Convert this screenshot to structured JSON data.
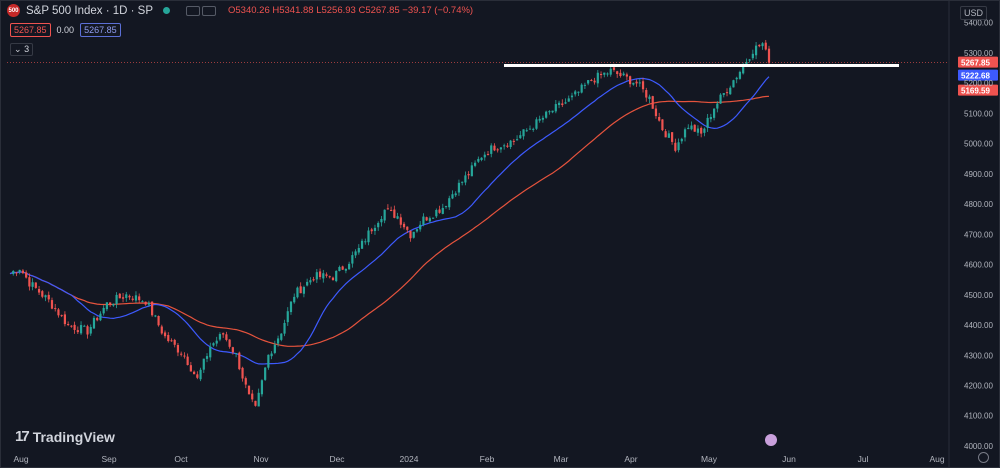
{
  "header": {
    "symbol_icon": "500",
    "title": "S&P 500 Index · 1D · SP",
    "status_color": "#26a69a",
    "ohlc_text": "O5340.26 H5341.88 L5256.93 C5267.85 −39.17 (−0.74%)",
    "price_pill": "5267.85",
    "change": "0.00",
    "blue_pill": "5267.85",
    "indicators_count": "3",
    "currency": "USD"
  },
  "watermark": {
    "text": "TradingView",
    "icon": "tradingview-logo-icon"
  },
  "chart_data": {
    "type": "candlestick",
    "title": "S&P 500 Index · 1D · SP",
    "x_ticks": [
      "Aug",
      "Sep",
      "Oct",
      "Nov",
      "Dec",
      "2024",
      "Feb",
      "Mar",
      "Apr",
      "May",
      "Jun",
      "Jul",
      "Aug"
    ],
    "y_ticks": [
      4000,
      4100,
      4200,
      4300,
      4400,
      4500,
      4600,
      4700,
      4800,
      4900,
      5000,
      5100,
      5200,
      5300,
      5400
    ],
    "ylim": [
      3990,
      5445
    ],
    "price_labels": [
      {
        "value": 5267.85,
        "text": "5267.85",
        "color": "#ef5350"
      },
      {
        "value": 5222.68,
        "text": "5222.68",
        "color": "#3d5afe"
      },
      {
        "value": 5169.59,
        "text": "5169.59",
        "color": "#ef5350"
      }
    ],
    "anchors": [
      {
        "x": 0,
        "y": 4570
      },
      {
        "x": 3,
        "y": 4590
      },
      {
        "x": 6,
        "y": 4540
      },
      {
        "x": 12,
        "y": 4480
      },
      {
        "x": 18,
        "y": 4400
      },
      {
        "x": 24,
        "y": 4380
      },
      {
        "x": 30,
        "y": 4470
      },
      {
        "x": 36,
        "y": 4500
      },
      {
        "x": 42,
        "y": 4480
      },
      {
        "x": 48,
        "y": 4360
      },
      {
        "x": 54,
        "y": 4300
      },
      {
        "x": 58,
        "y": 4220
      },
      {
        "x": 62,
        "y": 4330
      },
      {
        "x": 66,
        "y": 4370
      },
      {
        "x": 70,
        "y": 4300
      },
      {
        "x": 74,
        "y": 4160
      },
      {
        "x": 76,
        "y": 4120
      },
      {
        "x": 80,
        "y": 4300
      },
      {
        "x": 84,
        "y": 4380
      },
      {
        "x": 88,
        "y": 4500
      },
      {
        "x": 94,
        "y": 4560
      },
      {
        "x": 100,
        "y": 4560
      },
      {
        "x": 104,
        "y": 4600
      },
      {
        "x": 108,
        "y": 4650
      },
      {
        "x": 112,
        "y": 4720
      },
      {
        "x": 116,
        "y": 4780
      },
      {
        "x": 120,
        "y": 4760
      },
      {
        "x": 124,
        "y": 4700
      },
      {
        "x": 128,
        "y": 4750
      },
      {
        "x": 134,
        "y": 4790
      },
      {
        "x": 138,
        "y": 4850
      },
      {
        "x": 142,
        "y": 4900
      },
      {
        "x": 146,
        "y": 4960
      },
      {
        "x": 150,
        "y": 4990
      },
      {
        "x": 156,
        "y": 5010
      },
      {
        "x": 162,
        "y": 5060
      },
      {
        "x": 168,
        "y": 5110
      },
      {
        "x": 174,
        "y": 5150
      },
      {
        "x": 180,
        "y": 5210
      },
      {
        "x": 186,
        "y": 5240
      },
      {
        "x": 190,
        "y": 5220
      },
      {
        "x": 194,
        "y": 5200
      },
      {
        "x": 198,
        "y": 5150
      },
      {
        "x": 202,
        "y": 5050
      },
      {
        "x": 206,
        "y": 4990
      },
      {
        "x": 210,
        "y": 5060
      },
      {
        "x": 214,
        "y": 5030
      },
      {
        "x": 218,
        "y": 5120
      },
      {
        "x": 222,
        "y": 5180
      },
      {
        "x": 226,
        "y": 5240
      },
      {
        "x": 230,
        "y": 5310
      },
      {
        "x": 233,
        "y": 5330
      },
      {
        "x": 235,
        "y": 5268
      }
    ],
    "ma_fast_color": "#3d5afe",
    "ma_slow_color": "#e5533d",
    "up_color": "#26a69a",
    "down_color": "#ef5350",
    "resistance_level": 5258,
    "grid": false
  }
}
